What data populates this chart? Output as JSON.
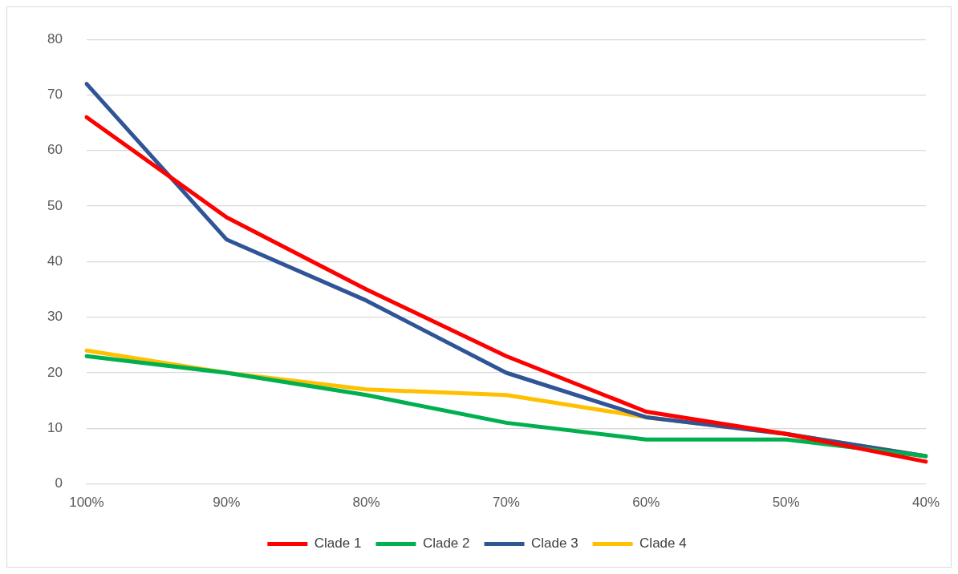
{
  "chart_data": {
    "type": "line",
    "categories": [
      "100%",
      "90%",
      "80%",
      "70%",
      "60%",
      "50%",
      "40%"
    ],
    "series": [
      {
        "name": "Clade 1",
        "color": "#ff0000",
        "values": [
          66,
          48,
          35,
          23,
          13,
          9,
          4
        ]
      },
      {
        "name": "Clade 2",
        "color": "#00b050",
        "values": [
          23,
          20,
          16,
          11,
          8,
          8,
          5
        ]
      },
      {
        "name": "Clade 3",
        "color": "#2f5597",
        "values": [
          72,
          44,
          33,
          20,
          12,
          9,
          5
        ]
      },
      {
        "name": "Clade 4",
        "color": "#ffc000",
        "values": [
          24,
          20,
          17,
          16,
          12,
          9,
          5
        ]
      }
    ],
    "ylim": [
      0,
      80
    ],
    "yticks": [
      0,
      10,
      20,
      30,
      40,
      50,
      60,
      70,
      80
    ],
    "grid": "y",
    "legend": "bottom",
    "marker": "none",
    "line_style": "solid"
  }
}
